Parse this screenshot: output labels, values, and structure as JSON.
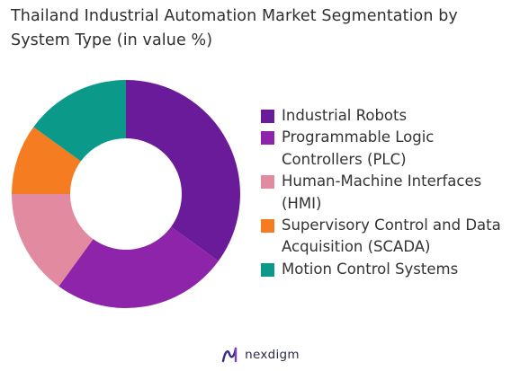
{
  "chart_data": {
    "type": "pie",
    "title": "Thailand Industrial Automation Market Segmentation by System Type (in value %)",
    "donut": true,
    "legend_position": "right",
    "categories": [
      "Industrial Robots",
      "Programmable Logic Controllers (PLC)",
      "Human-Machine Interfaces (HMI)",
      "Supervisory Control and Data Acquisition (SCADA)",
      "Motion Control Systems"
    ],
    "values": [
      35,
      25,
      15,
      10,
      15
    ],
    "colors": [
      "#6a1b9a",
      "#8e24aa",
      "#e28a9f",
      "#f57c20",
      "#0b9a8a"
    ]
  },
  "brand": {
    "name": "nexdigm",
    "logo_icon": "nexdigm-logo-icon"
  }
}
